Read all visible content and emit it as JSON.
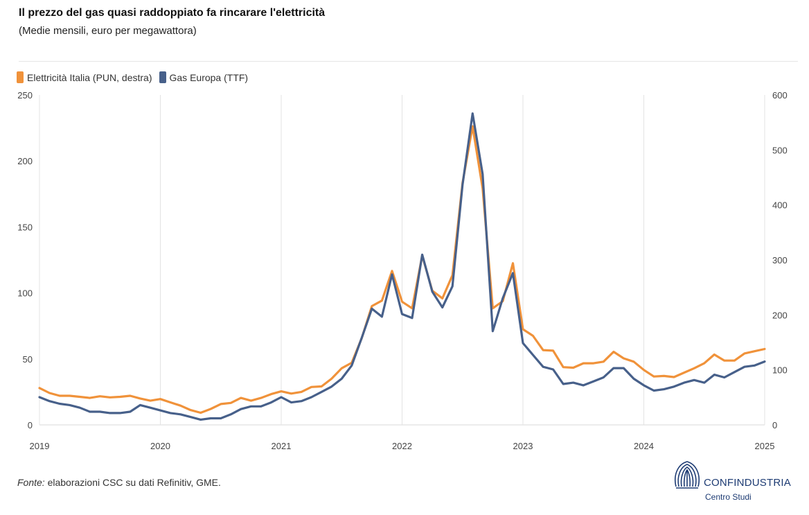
{
  "header": {
    "title": "Il prezzo del gas quasi raddoppiato fa rincarare l'elettricità",
    "subtitle": "(Medie mensili, euro per megawattora)"
  },
  "legend": [
    {
      "label": "Elettricità Italia (PUN, destra)",
      "color": "#f0923a"
    },
    {
      "label": "Gas Europa (TTF)",
      "color": "#47608a"
    }
  ],
  "footer": {
    "source_label": "Fonte:",
    "source_text": " elaborazioni CSC su dati Refinitiv, GME."
  },
  "logo": {
    "name": "CONFINDUSTRIA",
    "sub": "Centro Studi"
  },
  "chart_data": {
    "type": "line",
    "x_start": "2019-01",
    "x_ticks": [
      "2019",
      "2020",
      "2021",
      "2022",
      "2023",
      "2024",
      "2025"
    ],
    "left_axis": {
      "min": 0,
      "max": 250,
      "ticks": [
        0,
        50,
        100,
        150,
        200,
        250
      ]
    },
    "right_axis": {
      "min": 0,
      "max": 600,
      "ticks": [
        0,
        100,
        200,
        300,
        400,
        500,
        600
      ]
    },
    "grid": "vertical at year ticks",
    "series": [
      {
        "name": "Elettricità Italia (PUN, destra)",
        "axis": "right",
        "color": "#f0923a",
        "values": [
          67,
          58,
          53,
          53,
          51,
          49,
          52,
          50,
          51,
          53,
          48,
          44,
          47,
          41,
          35,
          27,
          22,
          29,
          38,
          40,
          49,
          44,
          49,
          56,
          61,
          57,
          60,
          69,
          70,
          84,
          103,
          113,
          158,
          216,
          226,
          280,
          224,
          212,
          308,
          244,
          230,
          272,
          440,
          543,
          430,
          212,
          225,
          294,
          174,
          162,
          136,
          135,
          105,
          104,
          112,
          112,
          115,
          133,
          121,
          115,
          100,
          88,
          89,
          87,
          95,
          103,
          112,
          128,
          117,
          117,
          130,
          134,
          138
        ]
      },
      {
        "name": "Gas Europa (TTF)",
        "axis": "left",
        "color": "#47608a",
        "values": [
          21,
          18,
          16,
          15,
          13,
          10,
          10,
          9,
          9,
          10,
          15,
          13,
          11,
          9,
          8,
          6,
          4,
          5,
          5,
          8,
          12,
          14,
          14,
          17,
          21,
          17,
          18,
          21,
          25,
          29,
          35,
          45,
          66,
          88,
          82,
          114,
          84,
          81,
          129,
          101,
          89,
          105,
          182,
          236,
          190,
          71,
          96,
          115,
          62,
          53,
          44,
          42,
          31,
          32,
          30,
          33,
          36,
          43,
          43,
          35,
          30,
          26,
          27,
          29,
          32,
          34,
          32,
          38,
          36,
          40,
          44,
          45,
          48
        ]
      }
    ]
  }
}
